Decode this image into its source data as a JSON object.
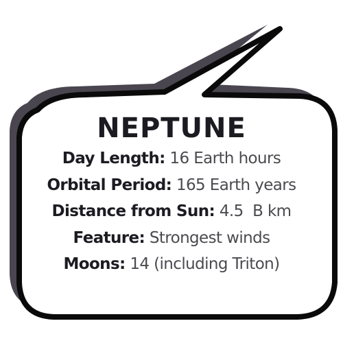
{
  "title": "NEPTUNE",
  "facts": [
    {
      "label": "Day Length:",
      "value": " 16 Earth hours"
    },
    {
      "label": "Orbital Period:",
      "value": " 165 Earth years"
    },
    {
      "label": "Distance from Sun:",
      "value": " 4.5  B km"
    },
    {
      "label": "Feature:",
      "value": " Strongest winds"
    },
    {
      "label": "Moons:",
      "value": " 14 (including Triton)"
    }
  ],
  "colors": {
    "outline": "#0a0a0a",
    "shadow": "#4a4650",
    "fill": "#ffffff",
    "label_text": "#1c1b22",
    "value_text": "#4a4a4f"
  }
}
